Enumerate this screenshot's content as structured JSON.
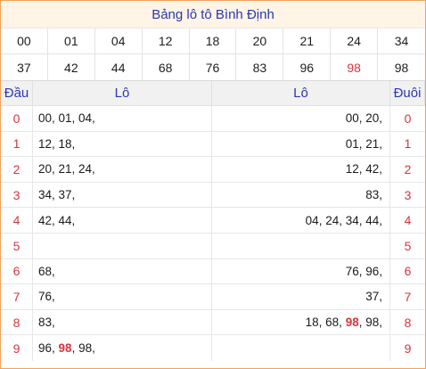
{
  "title": "Bảng lô tô Bình Định",
  "numbers": [
    "00",
    "01",
    "04",
    "12",
    "18",
    "20",
    "21",
    "24",
    "34",
    "37",
    "42",
    "44",
    "68",
    "76",
    "83",
    "96",
    "98",
    "98"
  ],
  "highlight_index": 16,
  "headers": {
    "dau": "Đầu",
    "lo_left": "Lô",
    "lo_right": "Lô",
    "duoi": "Đuôi"
  },
  "rows": [
    {
      "dau": "0",
      "left": [
        {
          "t": "00, 01, 04,"
        }
      ],
      "right": [
        {
          "t": "00, 20,"
        }
      ],
      "duoi": "0"
    },
    {
      "dau": "1",
      "left": [
        {
          "t": "12, 18,"
        }
      ],
      "right": [
        {
          "t": "01, 21,"
        }
      ],
      "duoi": "1"
    },
    {
      "dau": "2",
      "left": [
        {
          "t": "20, 21, 24,"
        }
      ],
      "right": [
        {
          "t": "12, 42,"
        }
      ],
      "duoi": "2"
    },
    {
      "dau": "3",
      "left": [
        {
          "t": "34, 37,"
        }
      ],
      "right": [
        {
          "t": "83,"
        }
      ],
      "duoi": "3"
    },
    {
      "dau": "4",
      "left": [
        {
          "t": "42, 44,"
        }
      ],
      "right": [
        {
          "t": "04, 24, 34, 44,"
        }
      ],
      "duoi": "4"
    },
    {
      "dau": "5",
      "left": [
        {
          "t": ""
        }
      ],
      "right": [
        {
          "t": ""
        }
      ],
      "duoi": "5"
    },
    {
      "dau": "6",
      "left": [
        {
          "t": "68,"
        }
      ],
      "right": [
        {
          "t": "76, 96,"
        }
      ],
      "duoi": "6"
    },
    {
      "dau": "7",
      "left": [
        {
          "t": "76,"
        }
      ],
      "right": [
        {
          "t": "37,"
        }
      ],
      "duoi": "7"
    },
    {
      "dau": "8",
      "left": [
        {
          "t": "83,"
        }
      ],
      "right": [
        {
          "t": "18, 68, "
        },
        {
          "t": "98",
          "hl": true
        },
        {
          "t": ", 98,"
        }
      ],
      "duoi": "8"
    },
    {
      "dau": "9",
      "left": [
        {
          "t": "96, "
        },
        {
          "t": "98",
          "hl": true
        },
        {
          "t": ", 98,"
        }
      ],
      "right": [
        {
          "t": ""
        }
      ],
      "duoi": "9"
    }
  ],
  "colors": {
    "accent": "#2a37b3",
    "red": "#d8343e",
    "title_bg": "#fff4e5",
    "border": "#f1a25b"
  }
}
